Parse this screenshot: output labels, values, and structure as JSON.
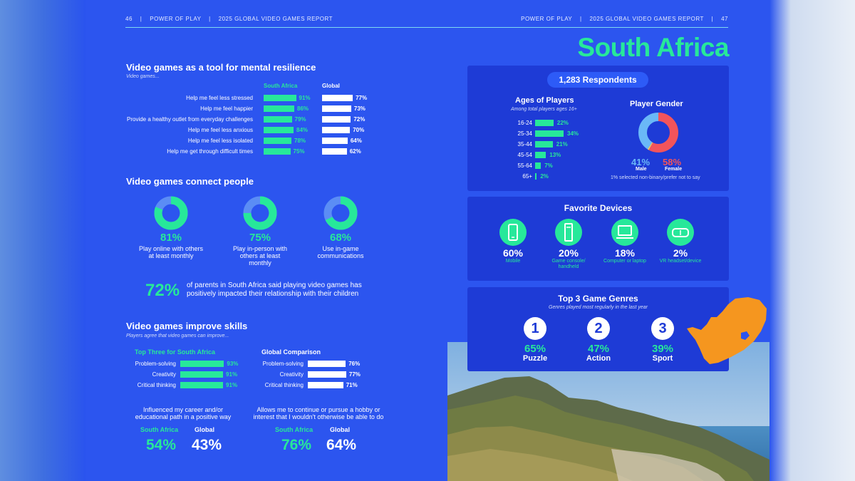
{
  "header": {
    "left_page": "46",
    "sep": "|",
    "left_brand": "POWER OF PLAY",
    "left_report": "2025 GLOBAL VIDEO GAMES REPORT",
    "right_brand": "POWER OF PLAY",
    "right_report": "2025 GLOBAL VIDEO GAMES REPORT",
    "right_page": "47"
  },
  "country_title": "South Africa",
  "resilience": {
    "title": "Video games as a tool for mental resilience",
    "subtitle": "Video games...",
    "col_sa": "South Africa",
    "col_global": "Global",
    "rows": [
      {
        "label": "Help me feel less stressed",
        "sa": "91%",
        "global": "77%",
        "sa_v": 91,
        "global_v": 77
      },
      {
        "label": "Help me feel happier",
        "sa": "86%",
        "global": "73%",
        "sa_v": 86,
        "global_v": 73
      },
      {
        "label": "Provide a healthy outlet from everyday challenges",
        "sa": "79%",
        "global": "72%",
        "sa_v": 79,
        "global_v": 72
      },
      {
        "label": "Help me feel less anxious",
        "sa": "84%",
        "global": "70%",
        "sa_v": 84,
        "global_v": 70
      },
      {
        "label": "Help me feel less isolated",
        "sa": "78%",
        "global": "64%",
        "sa_v": 78,
        "global_v": 64
      },
      {
        "label": "Help me get through difficult times",
        "sa": "75%",
        "global": "62%",
        "sa_v": 75,
        "global_v": 62
      }
    ]
  },
  "connect": {
    "title": "Video games connect people",
    "items": [
      {
        "pct": "81%",
        "value": 81,
        "line1": "Play online with others",
        "line2": "at least monthly",
        "line3": ""
      },
      {
        "pct": "75%",
        "value": 75,
        "line1": "Play in-person with",
        "line2": "others at least",
        "line3": "monthly"
      },
      {
        "pct": "68%",
        "value": 68,
        "line1": "Use in-game",
        "line2": "communications",
        "line3": ""
      }
    ],
    "parents_pct": "72%",
    "parents_line1": "of parents in South Africa said playing video games has",
    "parents_line2": "positively impacted their relationship with their children"
  },
  "skills": {
    "title": "Video games improve skills",
    "subtitle": "Players agree that video games can improve...",
    "sa_head": "Top Three for South Africa",
    "global_head": "Global Comparison",
    "sa_rows": [
      {
        "label": "Problem-solving",
        "pct": "93%",
        "v": 93
      },
      {
        "label": "Creativity",
        "pct": "91%",
        "v": 91
      },
      {
        "label": "Critical thinking",
        "pct": "91%",
        "v": 91
      }
    ],
    "global_rows": [
      {
        "label": "Problem-solving",
        "pct": "76%",
        "v": 76
      },
      {
        "label": "Creativity",
        "pct": "77%",
        "v": 77
      },
      {
        "label": "Critical thinking",
        "pct": "71%",
        "v": 71
      }
    ],
    "career_line1": "Influenced my career and/or",
    "career_line2": "educational path in a positive way",
    "hobby_line1": "Allows me to continue or pursue a hobby or",
    "hobby_line2": "interest that I wouldn't otherwise be able to do",
    "sa_label": "South Africa",
    "global_label": "Global",
    "career_sa": "54%",
    "career_global": "43%",
    "hobby_sa": "76%",
    "hobby_global": "64%"
  },
  "respondents": "1,283 Respondents",
  "ages": {
    "title": "Ages of Players",
    "subtitle": "Among total players ages 16+",
    "rows": [
      {
        "label": "16-24",
        "pct": "22%",
        "v": 22
      },
      {
        "label": "25-34",
        "pct": "34%",
        "v": 34
      },
      {
        "label": "35-44",
        "pct": "21%",
        "v": 21
      },
      {
        "label": "45-54",
        "pct": "13%",
        "v": 13
      },
      {
        "label": "55-64",
        "pct": "7%",
        "v": 7
      },
      {
        "label": "65+",
        "pct": "2%",
        "v": 2
      }
    ]
  },
  "gender": {
    "title": "Player Gender",
    "male_pct": "41%",
    "male_label": "Male",
    "female_pct": "58%",
    "female_label": "Female",
    "note": "1% selected non-binary/prefer not to say",
    "male_v": 41,
    "female_v": 58,
    "other_v": 1,
    "male_color": "#6ab8f7",
    "female_color": "#f2545b",
    "other_color": "#f7d35a"
  },
  "devices": {
    "title": "Favorite Devices",
    "items": [
      {
        "pct": "60%",
        "line1": "Mobile",
        "line2": "",
        "icon": "mobile-icon"
      },
      {
        "pct": "20%",
        "line1": "Game console/",
        "line2": "handheld",
        "icon": "console-icon"
      },
      {
        "pct": "18%",
        "line1": "Computer or laptop",
        "line2": "",
        "icon": "laptop-icon"
      },
      {
        "pct": "2%",
        "line1": "VR headset/device",
        "line2": "",
        "icon": "vr-headset-icon"
      }
    ]
  },
  "genres": {
    "title": "Top 3 Game Genres",
    "subtitle": "Genres played most regularly in the last year",
    "items": [
      {
        "rank": "1",
        "pct": "65%",
        "name": "Puzzle"
      },
      {
        "rank": "2",
        "pct": "47%",
        "name": "Action"
      },
      {
        "rank": "3",
        "pct": "39%",
        "name": "Sport"
      }
    ]
  },
  "colors": {
    "accent_green": "#27e89a",
    "background_blue": "#2c55ef",
    "card_blue": "#1e3bd6",
    "map_orange": "#f5961f"
  }
}
